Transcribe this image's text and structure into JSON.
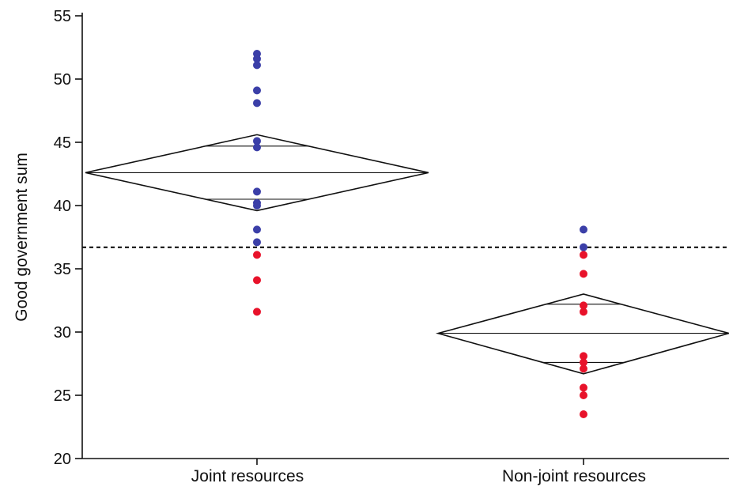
{
  "chart_data": {
    "type": "scatter",
    "title": "",
    "xlabel": "",
    "ylabel": "Good government sum",
    "ylim": [
      20,
      55
    ],
    "yticks": [
      20,
      25,
      30,
      35,
      40,
      45,
      50,
      55
    ],
    "categories": [
      "Joint resources",
      "Non-joint resources"
    ],
    "grand_mean": 36.7,
    "groups": [
      {
        "category": "Joint resources",
        "mean": 42.6,
        "ci_upper": 45.6,
        "ci_lower": 39.6,
        "overlap_upper": 44.7,
        "overlap_lower": 40.5,
        "points": [
          {
            "y": 52.0,
            "color": "#3b3fa8"
          },
          {
            "y": 51.6,
            "color": "#3b3fa8"
          },
          {
            "y": 51.1,
            "color": "#3b3fa8"
          },
          {
            "y": 49.1,
            "color": "#3b3fa8"
          },
          {
            "y": 48.1,
            "color": "#3b3fa8"
          },
          {
            "y": 45.1,
            "color": "#3b3fa8"
          },
          {
            "y": 44.6,
            "color": "#3b3fa8"
          },
          {
            "y": 41.1,
            "color": "#3b3fa8"
          },
          {
            "y": 40.2,
            "color": "#3b3fa8"
          },
          {
            "y": 40.0,
            "color": "#3b3fa8"
          },
          {
            "y": 38.1,
            "color": "#3b3fa8"
          },
          {
            "y": 37.1,
            "color": "#3b3fa8"
          },
          {
            "y": 36.1,
            "color": "#e8122a"
          },
          {
            "y": 34.1,
            "color": "#e8122a"
          },
          {
            "y": 31.6,
            "color": "#e8122a"
          }
        ]
      },
      {
        "category": "Non-joint resources",
        "mean": 29.9,
        "ci_upper": 33.0,
        "ci_lower": 26.7,
        "overlap_upper": 32.2,
        "overlap_lower": 27.6,
        "points": [
          {
            "y": 38.1,
            "color": "#3b3fa8"
          },
          {
            "y": 36.7,
            "color": "#3b3fa8"
          },
          {
            "y": 36.1,
            "color": "#e8122a"
          },
          {
            "y": 34.6,
            "color": "#e8122a"
          },
          {
            "y": 32.1,
            "color": "#e8122a"
          },
          {
            "y": 31.6,
            "color": "#e8122a"
          },
          {
            "y": 28.1,
            "color": "#e8122a"
          },
          {
            "y": 27.6,
            "color": "#e8122a"
          },
          {
            "y": 27.1,
            "color": "#e8122a"
          },
          {
            "y": 25.6,
            "color": "#e8122a"
          },
          {
            "y": 25.0,
            "color": "#e8122a"
          },
          {
            "y": 23.5,
            "color": "#e8122a"
          }
        ]
      }
    ],
    "grid": false,
    "legend": "none"
  }
}
